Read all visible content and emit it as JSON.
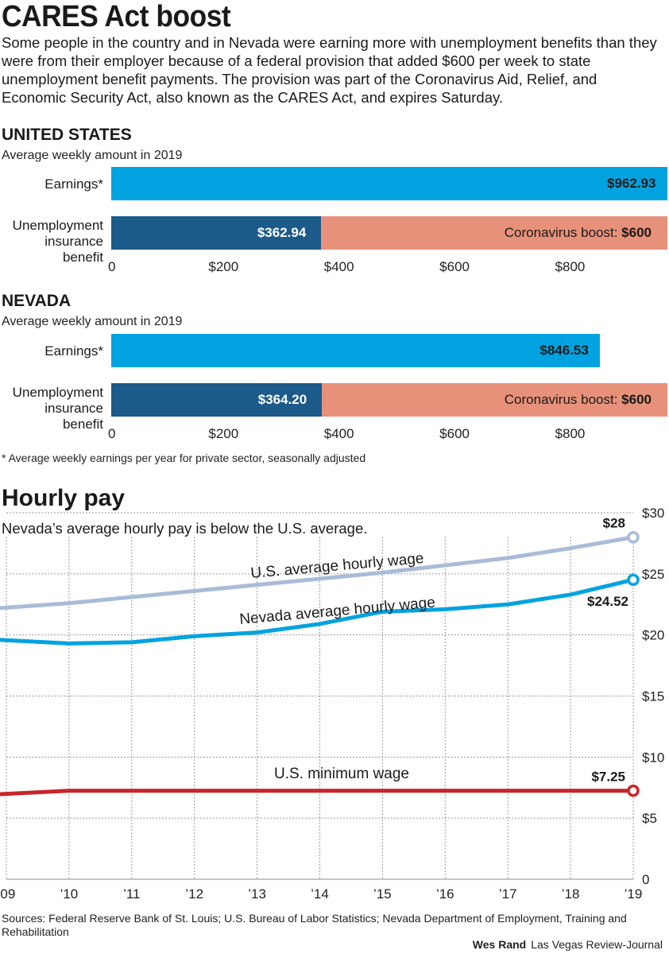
{
  "title": "CARES Act boost",
  "intro": "Some people in the country and in Nevada were earning more with unemployment benefits than they were from their employer because of a federal provision that added $600 per week to state unemployment benefit payments. The provision was part of the Coronavirus Aid, Relief, and Economic Security Act, also known as the CARES Act, and expires Saturday.",
  "footnote": "* Average weekly earnings per year for private sector, seasonally adjusted",
  "hourly_title": "Hourly pay",
  "hourly_subtitle": "Nevada’s average hourly pay is below the U.S. average.",
  "sources": "Sources: Federal Reserve Bank of St. Louis; U.S. Bureau of Labor Statistics; Nevada Department of Employment, Training and Rehabilitation",
  "credit_author": "Wes Rand",
  "credit_pub": "Las Vegas Review-Journal",
  "colors": {
    "earnings": "#00a3e0",
    "benefit": "#1c5a8a",
    "boost": "#e8917a",
    "us_wage": "#a9bbd8",
    "nv_wage": "#00a3e0",
    "min_wage": "#c8262b"
  },
  "chart_data": [
    {
      "type": "bar",
      "title": "UNITED STATES",
      "subtitle": "Average weekly amount in 2019",
      "categories": [
        "Earnings*",
        "Unemployment insurance benefit"
      ],
      "series": [
        {
          "name": "",
          "values": [
            962.93,
            362.94
          ],
          "labels": [
            "$962.93",
            "$362.94"
          ]
        },
        {
          "name": "Coronavirus boost",
          "values": [
            0,
            600
          ],
          "labels": [
            "",
            "Coronavirus boost: $600"
          ]
        }
      ],
      "xlim": [
        0,
        962.93
      ],
      "ticks": [
        "0",
        "$200",
        "$400",
        "$600",
        "$800"
      ],
      "tick_values": [
        0,
        200,
        400,
        600,
        800
      ]
    },
    {
      "type": "bar",
      "title": "NEVADA",
      "subtitle": "Average weekly amount in 2019",
      "categories": [
        "Earnings*",
        "Unemployment insurance benefit"
      ],
      "series": [
        {
          "name": "",
          "values": [
            846.53,
            364.2
          ],
          "labels": [
            "$846.53",
            "$364.20"
          ]
        },
        {
          "name": "Coronavirus boost",
          "values": [
            0,
            600
          ],
          "labels": [
            "",
            "Coronavirus boost: $600"
          ]
        }
      ],
      "xlim": [
        0,
        962.93
      ],
      "ticks": [
        "0",
        "$200",
        "$400",
        "$600",
        "$800"
      ],
      "tick_values": [
        0,
        200,
        400,
        600,
        800
      ]
    },
    {
      "type": "line",
      "title": "Hourly pay",
      "x": [
        "’09",
        "’10",
        "’11",
        "’12",
        "’13",
        "’14",
        "’15",
        "’16",
        "’17",
        "’18",
        "’19"
      ],
      "ylim": [
        0,
        30
      ],
      "y_ticks": [
        "0",
        "$5",
        "$10",
        "$15",
        "$20",
        "$25",
        "$30"
      ],
      "y_tick_values": [
        0,
        5,
        10,
        15,
        20,
        25,
        30
      ],
      "grid": true,
      "series": [
        {
          "name": "U.S. average hourly wage",
          "values": [
            22.2,
            22.6,
            23.1,
            23.6,
            24.1,
            24.6,
            25.1,
            25.7,
            26.3,
            27.1,
            28.0
          ],
          "end_label": "$28"
        },
        {
          "name": "Nevada average hourly wage",
          "values": [
            19.6,
            19.3,
            19.4,
            19.9,
            20.2,
            20.9,
            21.9,
            22.1,
            22.5,
            23.3,
            24.52
          ],
          "end_label": "$24.52"
        },
        {
          "name": "U.S. minimum wage",
          "values": [
            6.96,
            7.25,
            7.25,
            7.25,
            7.25,
            7.25,
            7.25,
            7.25,
            7.25,
            7.25,
            7.25
          ],
          "end_label": "$7.25"
        }
      ]
    }
  ]
}
